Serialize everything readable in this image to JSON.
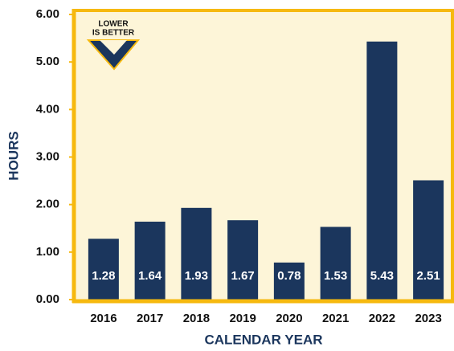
{
  "chart_data": {
    "type": "bar",
    "x_label": "CALENDAR YEAR",
    "y_label": "HOURS",
    "annotation": [
      "LOWER",
      "IS BETTER"
    ],
    "categories": [
      "2016",
      "2017",
      "2018",
      "2019",
      "2020",
      "2021",
      "2022",
      "2023"
    ],
    "values": [
      1.28,
      1.64,
      1.93,
      1.67,
      0.78,
      1.53,
      5.43,
      2.51
    ],
    "value_labels": [
      "1.28",
      "1.64",
      "1.93",
      "1.67",
      "0.78",
      "1.53",
      "5.43",
      "2.51"
    ],
    "color": "#1b365d",
    "ylim": [
      0,
      6
    ],
    "yticks": [
      {
        "value": 0,
        "label": "0.00"
      },
      {
        "value": 1,
        "label": "1.00"
      },
      {
        "value": 2,
        "label": "2.00"
      },
      {
        "value": 3,
        "label": "3.00"
      },
      {
        "value": 4,
        "label": "4.00"
      },
      {
        "value": 5,
        "label": "5.00"
      },
      {
        "value": 6,
        "label": "6.00"
      }
    ],
    "grid": false
  }
}
